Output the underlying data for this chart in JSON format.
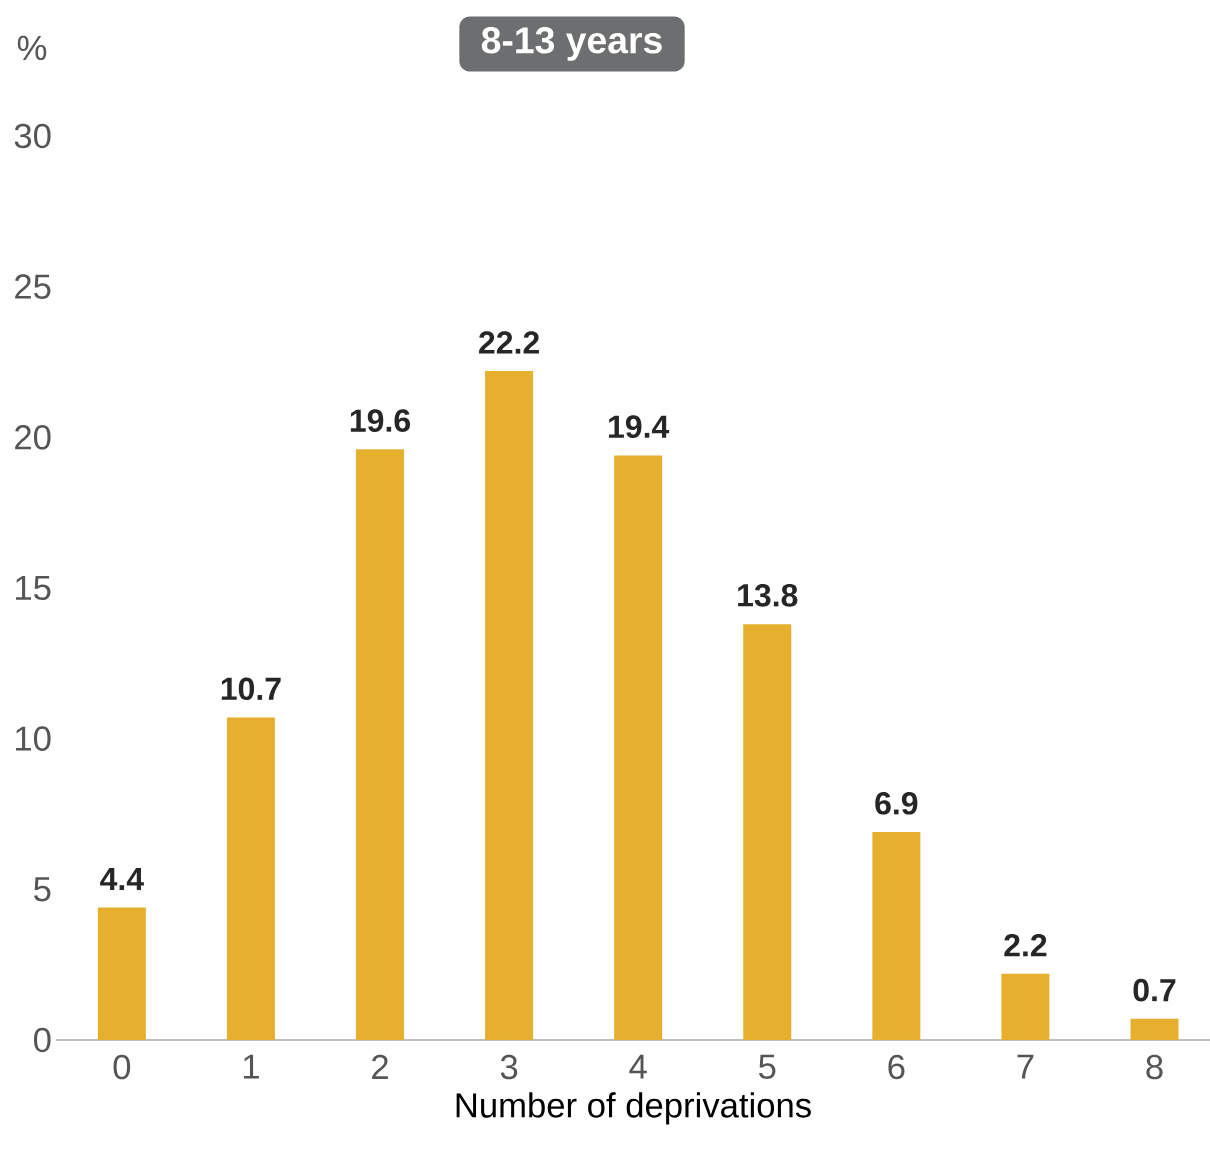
{
  "chart_data": {
    "type": "bar",
    "title": "8-13 years",
    "ylabel": "%",
    "xlabel": "Number of deprivations",
    "categories": [
      "0",
      "1",
      "2",
      "3",
      "4",
      "5",
      "6",
      "7",
      "8"
    ],
    "values": [
      4.4,
      10.7,
      19.6,
      22.2,
      19.4,
      13.8,
      6.9,
      2.2,
      0.7
    ],
    "color": "#e6b02e",
    "ylim": [
      0,
      30
    ],
    "yticks": [
      0,
      5,
      10,
      15,
      20,
      25,
      30
    ],
    "data_labels": true,
    "grid": false
  }
}
